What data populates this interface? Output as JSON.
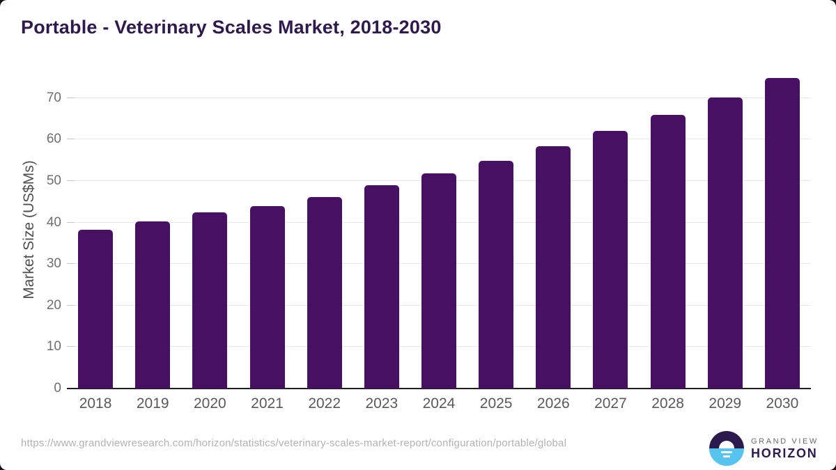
{
  "page": {
    "title": "Portable - Veterinary Scales Market, 2018-2030"
  },
  "chart_data": {
    "type": "bar",
    "title": "Portable - Veterinary Scales Market, 2018-2030",
    "categories": [
      "2018",
      "2019",
      "2020",
      "2021",
      "2022",
      "2023",
      "2024",
      "2025",
      "2026",
      "2027",
      "2028",
      "2029",
      "2030"
    ],
    "values": [
      38.3,
      40.3,
      42.4,
      44.0,
      46.2,
      49.0,
      51.9,
      54.9,
      58.4,
      62.1,
      65.9,
      70.2,
      74.9
    ],
    "xlabel": "",
    "ylabel": "Market Size (US$Ms)",
    "ylim": [
      0,
      76
    ],
    "yticks": [
      0,
      10,
      20,
      30,
      40,
      50,
      60,
      70
    ],
    "grid": true,
    "legend": "none",
    "bar_color": "#481062"
  },
  "colors": {
    "title": "#2f1a4d",
    "bar": "#481062",
    "gridline": "#e8e8e8",
    "axis_line": "#1f1f1f",
    "logo_purple": "#2b1b4d",
    "logo_blue": "#57c4f0"
  },
  "footer": {
    "source_url": "https://www.grandviewresearch.com/horizon/statistics/veterinary-scales-market-report/configuration/portable/global",
    "logo": {
      "brand_top": "GRAND VIEW",
      "brand_bottom": "HORIZON"
    }
  }
}
